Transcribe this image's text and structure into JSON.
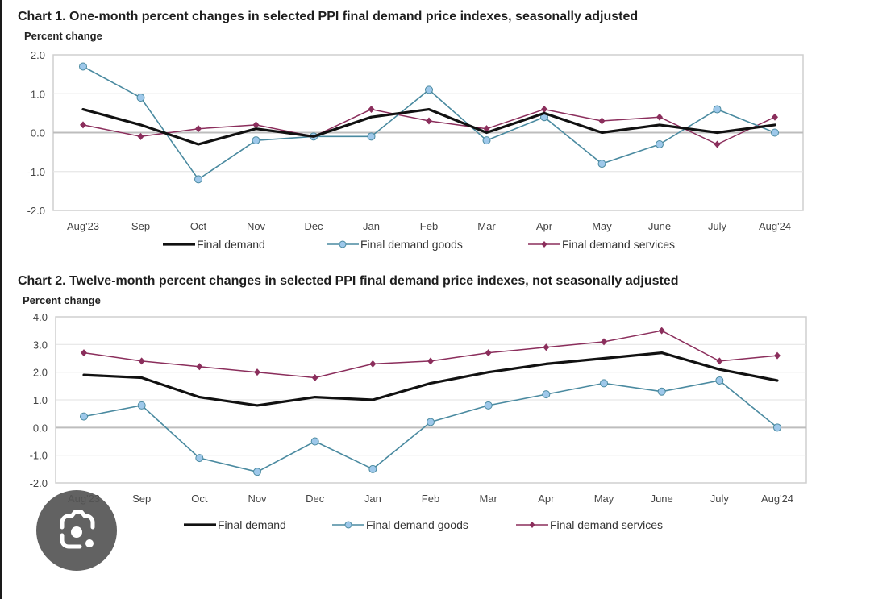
{
  "colors": {
    "final_demand": "#111111",
    "goods_line": "#4a8aa0",
    "goods_marker": "#9ec8ea",
    "services": "#8b2e5c",
    "grid": "#e6e6e6",
    "zero_line": "#bdbdbd",
    "frame": "#cfcfcf"
  },
  "overlay": {
    "icon": "google-lens-icon"
  },
  "chart_data": [
    {
      "type": "line",
      "title": "Chart 1. One-month percent changes in selected PPI final demand price indexes, seasonally adjusted",
      "xlabel": "",
      "ylabel": "Percent change",
      "ylim": [
        -2.0,
        2.0
      ],
      "yticks": [
        "2.0",
        "1.0",
        "0.0",
        "-1.0",
        "-2.0"
      ],
      "ytick_values": [
        2,
        1,
        0,
        -1,
        -2
      ],
      "grid": true,
      "legend_position": "bottom",
      "categories": [
        "Aug'23",
        "Sep",
        "Oct",
        "Nov",
        "Dec",
        "Jan",
        "Feb",
        "Mar",
        "Apr",
        "May",
        "June",
        "July",
        "Aug'24"
      ],
      "series": [
        {
          "name": "Final demand",
          "key": "final_demand",
          "marker": "none",
          "values": [
            0.6,
            0.2,
            -0.3,
            0.1,
            -0.1,
            0.4,
            0.6,
            0.0,
            0.5,
            0.0,
            0.2,
            0.0,
            0.2
          ]
        },
        {
          "name": "Final demand goods",
          "key": "goods",
          "marker": "circle",
          "values": [
            1.7,
            0.9,
            -1.2,
            -0.2,
            -0.1,
            -0.1,
            1.1,
            -0.2,
            0.4,
            -0.8,
            -0.3,
            0.6,
            0.0
          ]
        },
        {
          "name": "Final demand services",
          "key": "services",
          "marker": "diamond",
          "values": [
            0.2,
            -0.1,
            0.1,
            0.2,
            -0.1,
            0.6,
            0.3,
            0.1,
            0.6,
            0.3,
            0.4,
            -0.3,
            0.4
          ]
        }
      ]
    },
    {
      "type": "line",
      "title": "Chart 2. Twelve-month percent changes in selected PPI final demand price indexes, not seasonally adjusted",
      "xlabel": "",
      "ylabel": "Percent change",
      "ylim": [
        -2.0,
        4.0
      ],
      "yticks": [
        "4.0",
        "3.0",
        "2.0",
        "1.0",
        "0.0",
        "-1.0",
        "-2.0"
      ],
      "ytick_values": [
        4,
        3,
        2,
        1,
        0,
        -1,
        -2
      ],
      "grid": true,
      "legend_position": "bottom",
      "categories": [
        "Aug'23",
        "Sep",
        "Oct",
        "Nov",
        "Dec",
        "Jan",
        "Feb",
        "Mar",
        "Apr",
        "May",
        "June",
        "July",
        "Aug'24"
      ],
      "series": [
        {
          "name": "Final demand",
          "key": "final_demand",
          "marker": "none",
          "values": [
            1.9,
            1.8,
            1.1,
            0.8,
            1.1,
            1.0,
            1.6,
            2.0,
            2.3,
            2.5,
            2.7,
            2.1,
            1.7
          ]
        },
        {
          "name": "Final demand goods",
          "key": "goods",
          "marker": "circle",
          "values": [
            0.4,
            0.8,
            -1.1,
            -1.6,
            -0.5,
            -1.5,
            0.2,
            0.8,
            1.2,
            1.6,
            1.3,
            1.7,
            0.0
          ]
        },
        {
          "name": "Final demand services",
          "key": "services",
          "marker": "diamond",
          "values": [
            2.7,
            2.4,
            2.2,
            2.0,
            1.8,
            2.3,
            2.4,
            2.7,
            2.9,
            3.1,
            3.5,
            2.4,
            2.6
          ]
        }
      ]
    }
  ]
}
